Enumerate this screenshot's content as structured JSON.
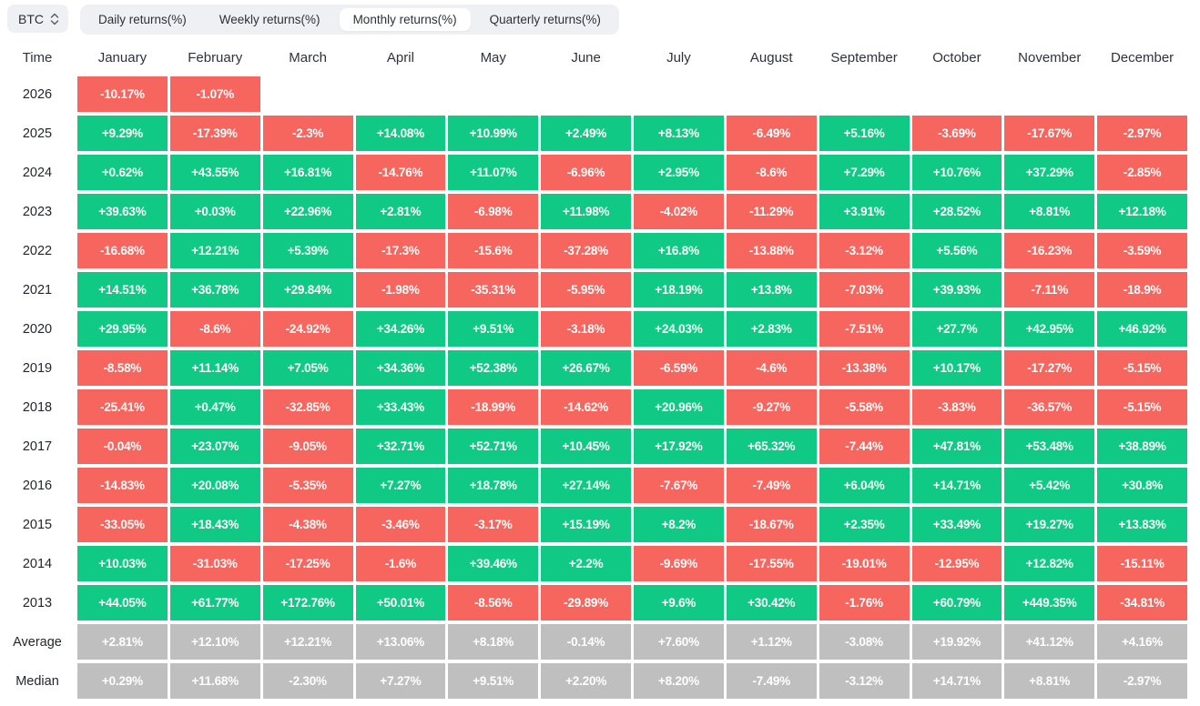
{
  "toolbar": {
    "coin": "BTC",
    "tabs": [
      {
        "label": "Daily returns(%)",
        "active": false
      },
      {
        "label": "Weekly returns(%)",
        "active": false
      },
      {
        "label": "Monthly returns(%)",
        "active": true
      },
      {
        "label": "Quarterly returns(%)",
        "active": false
      }
    ]
  },
  "colors": {
    "positive": "#10c985",
    "negative": "#f6665e",
    "neutral": "#bfbfbf"
  },
  "table": {
    "time_header": "Time",
    "months": [
      "January",
      "February",
      "March",
      "April",
      "May",
      "June",
      "July",
      "August",
      "September",
      "October",
      "November",
      "December"
    ],
    "rows": [
      {
        "label": "2026",
        "type": "year",
        "values": [
          "-10.17%",
          "-1.07%",
          null,
          null,
          null,
          null,
          null,
          null,
          null,
          null,
          null,
          null
        ]
      },
      {
        "label": "2025",
        "type": "year",
        "values": [
          "+9.29%",
          "-17.39%",
          "-2.3%",
          "+14.08%",
          "+10.99%",
          "+2.49%",
          "+8.13%",
          "-6.49%",
          "+5.16%",
          "-3.69%",
          "-17.67%",
          "-2.97%"
        ]
      },
      {
        "label": "2024",
        "type": "year",
        "values": [
          "+0.62%",
          "+43.55%",
          "+16.81%",
          "-14.76%",
          "+11.07%",
          "-6.96%",
          "+2.95%",
          "-8.6%",
          "+7.29%",
          "+10.76%",
          "+37.29%",
          "-2.85%"
        ]
      },
      {
        "label": "2023",
        "type": "year",
        "values": [
          "+39.63%",
          "+0.03%",
          "+22.96%",
          "+2.81%",
          "-6.98%",
          "+11.98%",
          "-4.02%",
          "-11.29%",
          "+3.91%",
          "+28.52%",
          "+8.81%",
          "+12.18%"
        ]
      },
      {
        "label": "2022",
        "type": "year",
        "values": [
          "-16.68%",
          "+12.21%",
          "+5.39%",
          "-17.3%",
          "-15.6%",
          "-37.28%",
          "+16.8%",
          "-13.88%",
          "-3.12%",
          "+5.56%",
          "-16.23%",
          "-3.59%"
        ]
      },
      {
        "label": "2021",
        "type": "year",
        "values": [
          "+14.51%",
          "+36.78%",
          "+29.84%",
          "-1.98%",
          "-35.31%",
          "-5.95%",
          "+18.19%",
          "+13.8%",
          "-7.03%",
          "+39.93%",
          "-7.11%",
          "-18.9%"
        ]
      },
      {
        "label": "2020",
        "type": "year",
        "values": [
          "+29.95%",
          "-8.6%",
          "-24.92%",
          "+34.26%",
          "+9.51%",
          "-3.18%",
          "+24.03%",
          "+2.83%",
          "-7.51%",
          "+27.7%",
          "+42.95%",
          "+46.92%"
        ]
      },
      {
        "label": "2019",
        "type": "year",
        "values": [
          "-8.58%",
          "+11.14%",
          "+7.05%",
          "+34.36%",
          "+52.38%",
          "+26.67%",
          "-6.59%",
          "-4.6%",
          "-13.38%",
          "+10.17%",
          "-17.27%",
          "-5.15%"
        ]
      },
      {
        "label": "2018",
        "type": "year",
        "values": [
          "-25.41%",
          "+0.47%",
          "-32.85%",
          "+33.43%",
          "-18.99%",
          "-14.62%",
          "+20.96%",
          "-9.27%",
          "-5.58%",
          "-3.83%",
          "-36.57%",
          "-5.15%"
        ]
      },
      {
        "label": "2017",
        "type": "year",
        "values": [
          "-0.04%",
          "+23.07%",
          "-9.05%",
          "+32.71%",
          "+52.71%",
          "+10.45%",
          "+17.92%",
          "+65.32%",
          "-7.44%",
          "+47.81%",
          "+53.48%",
          "+38.89%"
        ]
      },
      {
        "label": "2016",
        "type": "year",
        "values": [
          "-14.83%",
          "+20.08%",
          "-5.35%",
          "+7.27%",
          "+18.78%",
          "+27.14%",
          "-7.67%",
          "-7.49%",
          "+6.04%",
          "+14.71%",
          "+5.42%",
          "+30.8%"
        ]
      },
      {
        "label": "2015",
        "type": "year",
        "values": [
          "-33.05%",
          "+18.43%",
          "-4.38%",
          "-3.46%",
          "-3.17%",
          "+15.19%",
          "+8.2%",
          "-18.67%",
          "+2.35%",
          "+33.49%",
          "+19.27%",
          "+13.83%"
        ]
      },
      {
        "label": "2014",
        "type": "year",
        "values": [
          "+10.03%",
          "-31.03%",
          "-17.25%",
          "-1.6%",
          "+39.46%",
          "+2.2%",
          "-9.69%",
          "-17.55%",
          "-19.01%",
          "-12.95%",
          "+12.82%",
          "-15.11%"
        ]
      },
      {
        "label": "2013",
        "type": "year",
        "values": [
          "+44.05%",
          "+61.77%",
          "+172.76%",
          "+50.01%",
          "-8.56%",
          "-29.89%",
          "+9.6%",
          "+30.42%",
          "-1.76%",
          "+60.79%",
          "+449.35%",
          "-34.81%"
        ]
      },
      {
        "label": "Average",
        "type": "aggregate",
        "values": [
          "+2.81%",
          "+12.10%",
          "+12.21%",
          "+13.06%",
          "+8.18%",
          "-0.14%",
          "+7.60%",
          "+1.12%",
          "-3.08%",
          "+19.92%",
          "+41.12%",
          "+4.16%"
        ]
      },
      {
        "label": "Median",
        "type": "aggregate",
        "values": [
          "+0.29%",
          "+11.68%",
          "-2.30%",
          "+7.27%",
          "+9.51%",
          "+2.20%",
          "+8.20%",
          "-7.49%",
          "-3.12%",
          "+14.71%",
          "+8.81%",
          "-2.97%"
        ]
      }
    ]
  }
}
